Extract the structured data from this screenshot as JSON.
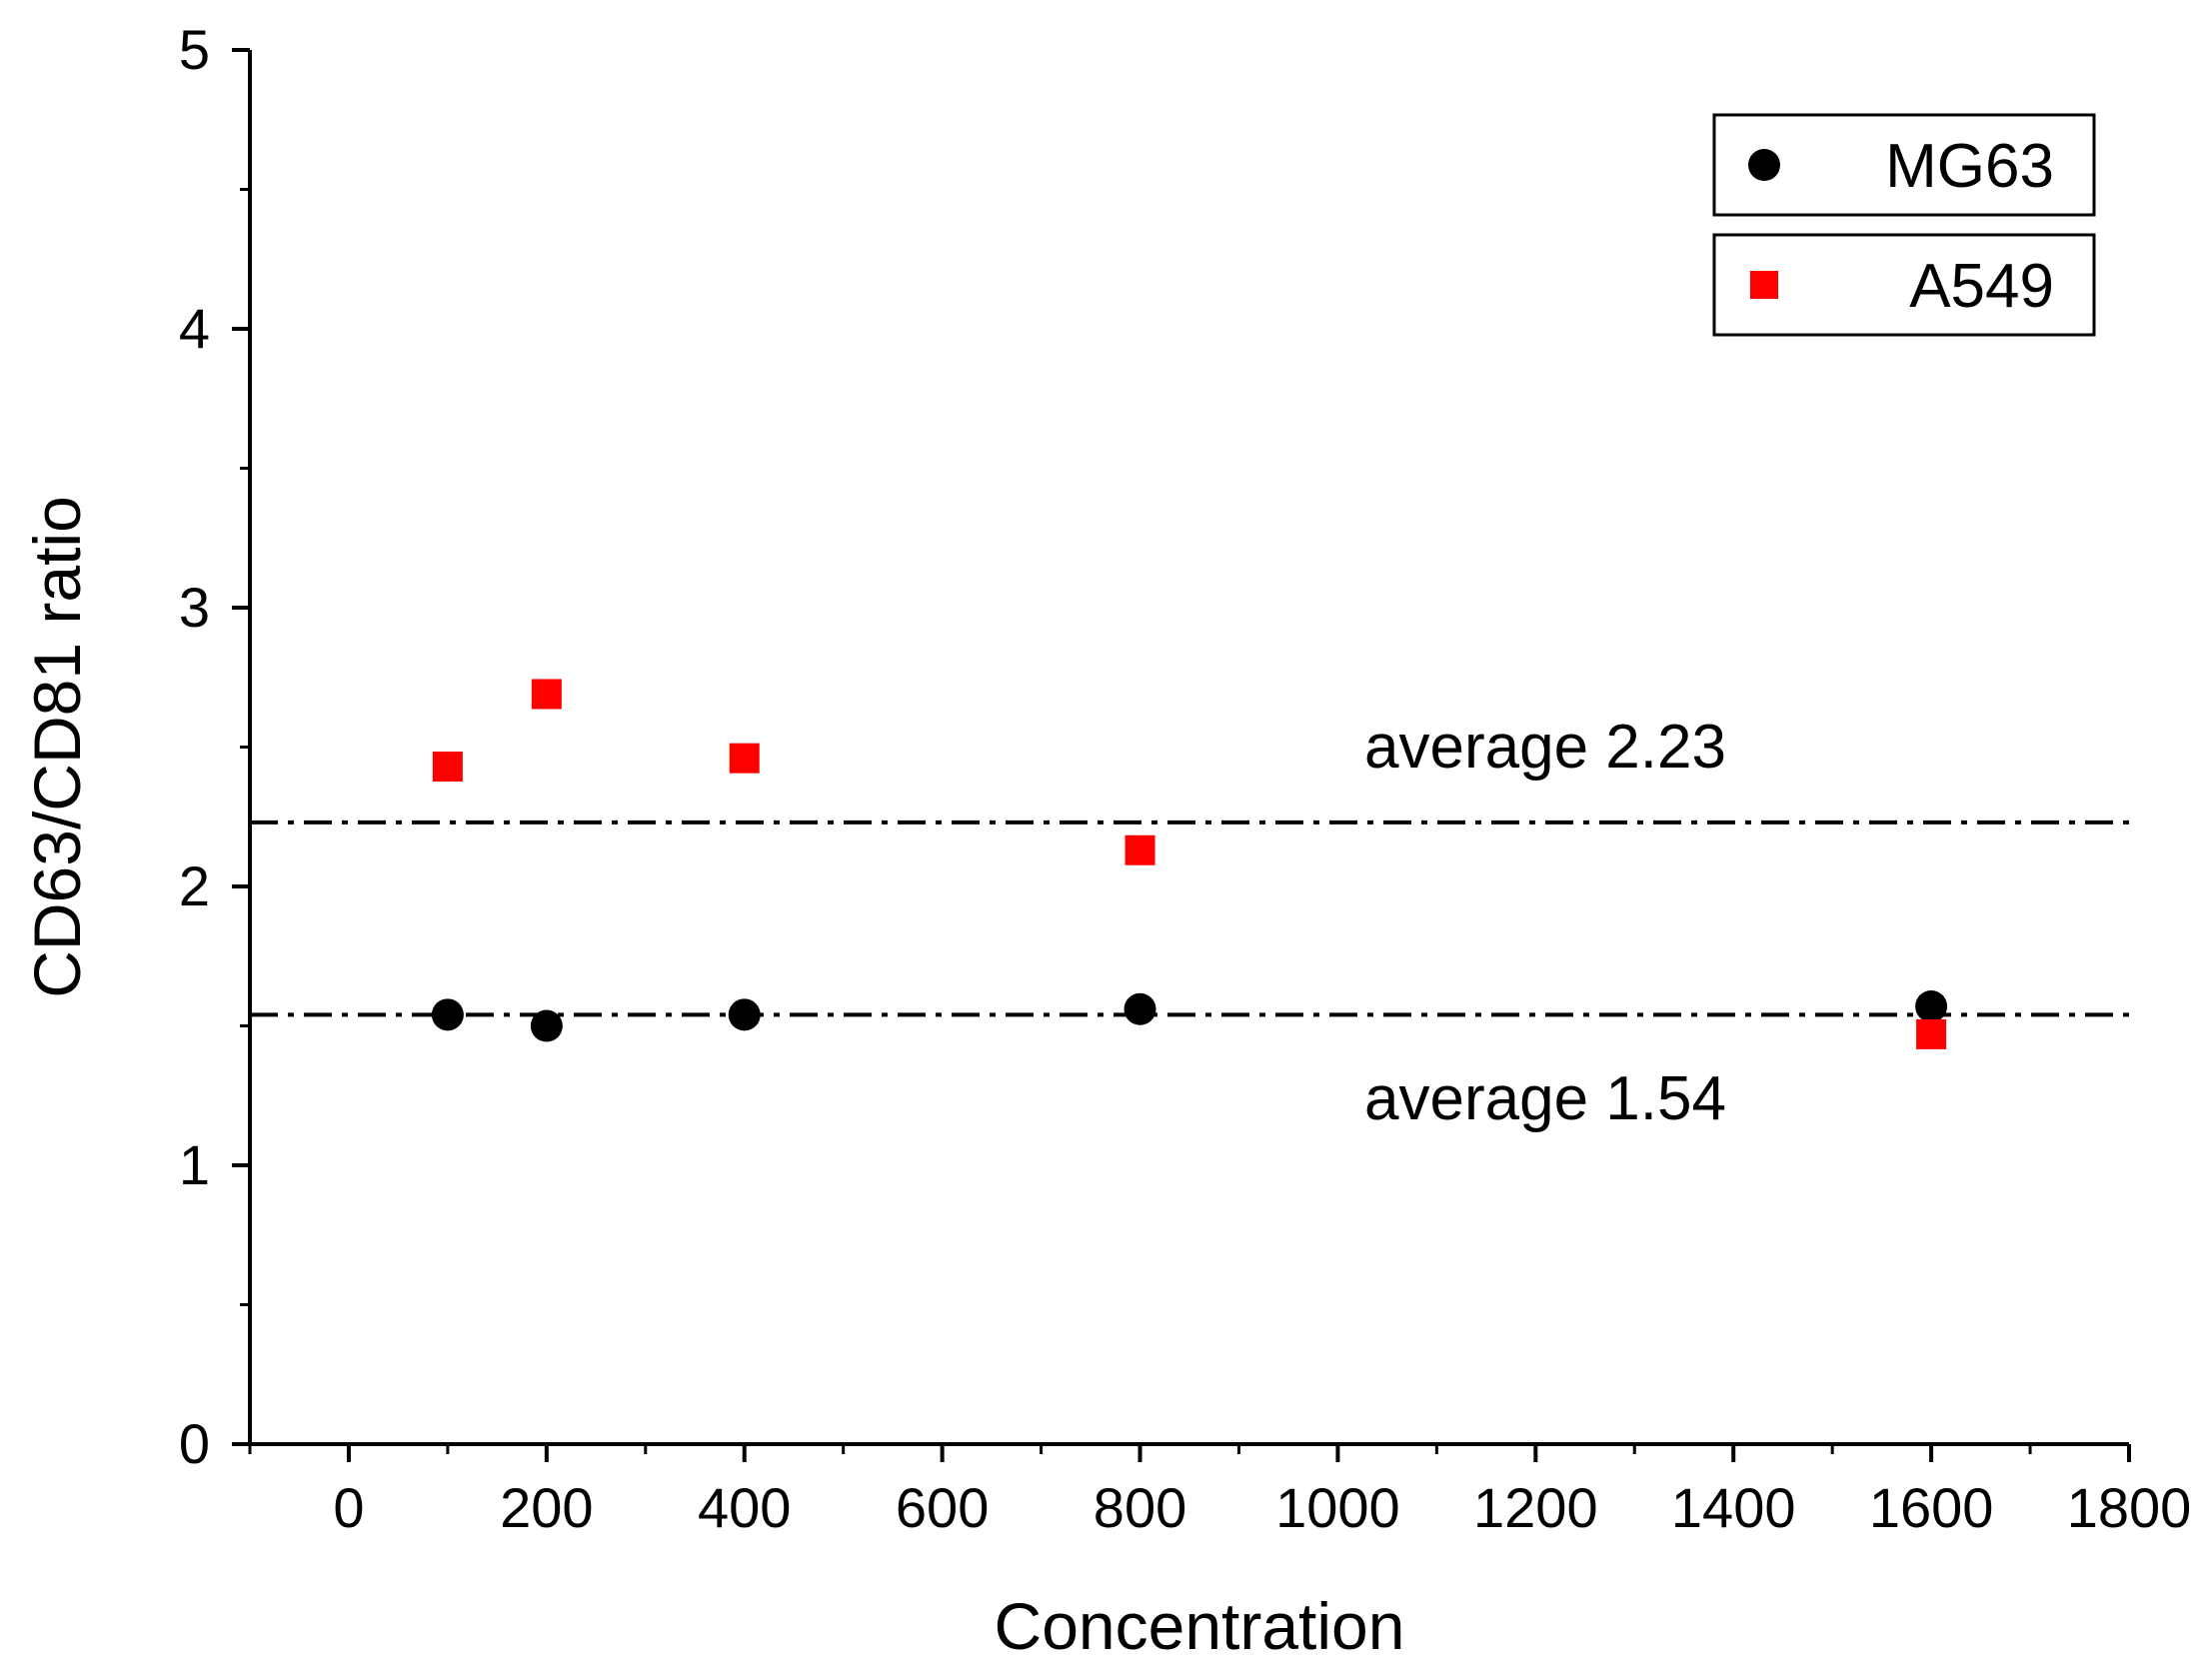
{
  "chart_data": {
    "type": "scatter",
    "title": "",
    "xlabel": "Concentration",
    "ylabel": "CD63/CD81 ratio",
    "xlim": [
      -100,
      1800
    ],
    "ylim": [
      0,
      5
    ],
    "xticks": [
      0,
      200,
      400,
      600,
      800,
      1000,
      1200,
      1400,
      1600,
      1800
    ],
    "yticks": [
      0,
      1,
      2,
      3,
      4,
      5
    ],
    "xtick_labels": [
      "0",
      "200",
      "400",
      "600",
      "800",
      "1000",
      "1200",
      "1400",
      "1600",
      "1800"
    ],
    "ytick_labels": [
      "0",
      "1",
      "2",
      "3",
      "4",
      "5"
    ],
    "grid": false,
    "legend_position": "top-right",
    "series": [
      {
        "name": "MG63",
        "marker": "circle",
        "color": "#000000",
        "x": [
          100,
          200,
          400,
          800,
          1600
        ],
        "y": [
          1.54,
          1.5,
          1.54,
          1.56,
          1.57
        ]
      },
      {
        "name": "A549",
        "marker": "square",
        "color": "#ff0000",
        "x": [
          100,
          200,
          400,
          800,
          1600
        ],
        "y": [
          2.43,
          2.69,
          2.46,
          2.13,
          1.47
        ]
      }
    ],
    "reference_lines": [
      {
        "y": 2.23,
        "style": "dash-dot",
        "label": "average 2.23"
      },
      {
        "y": 1.54,
        "style": "dash-dot",
        "label": "average 1.54"
      }
    ]
  }
}
